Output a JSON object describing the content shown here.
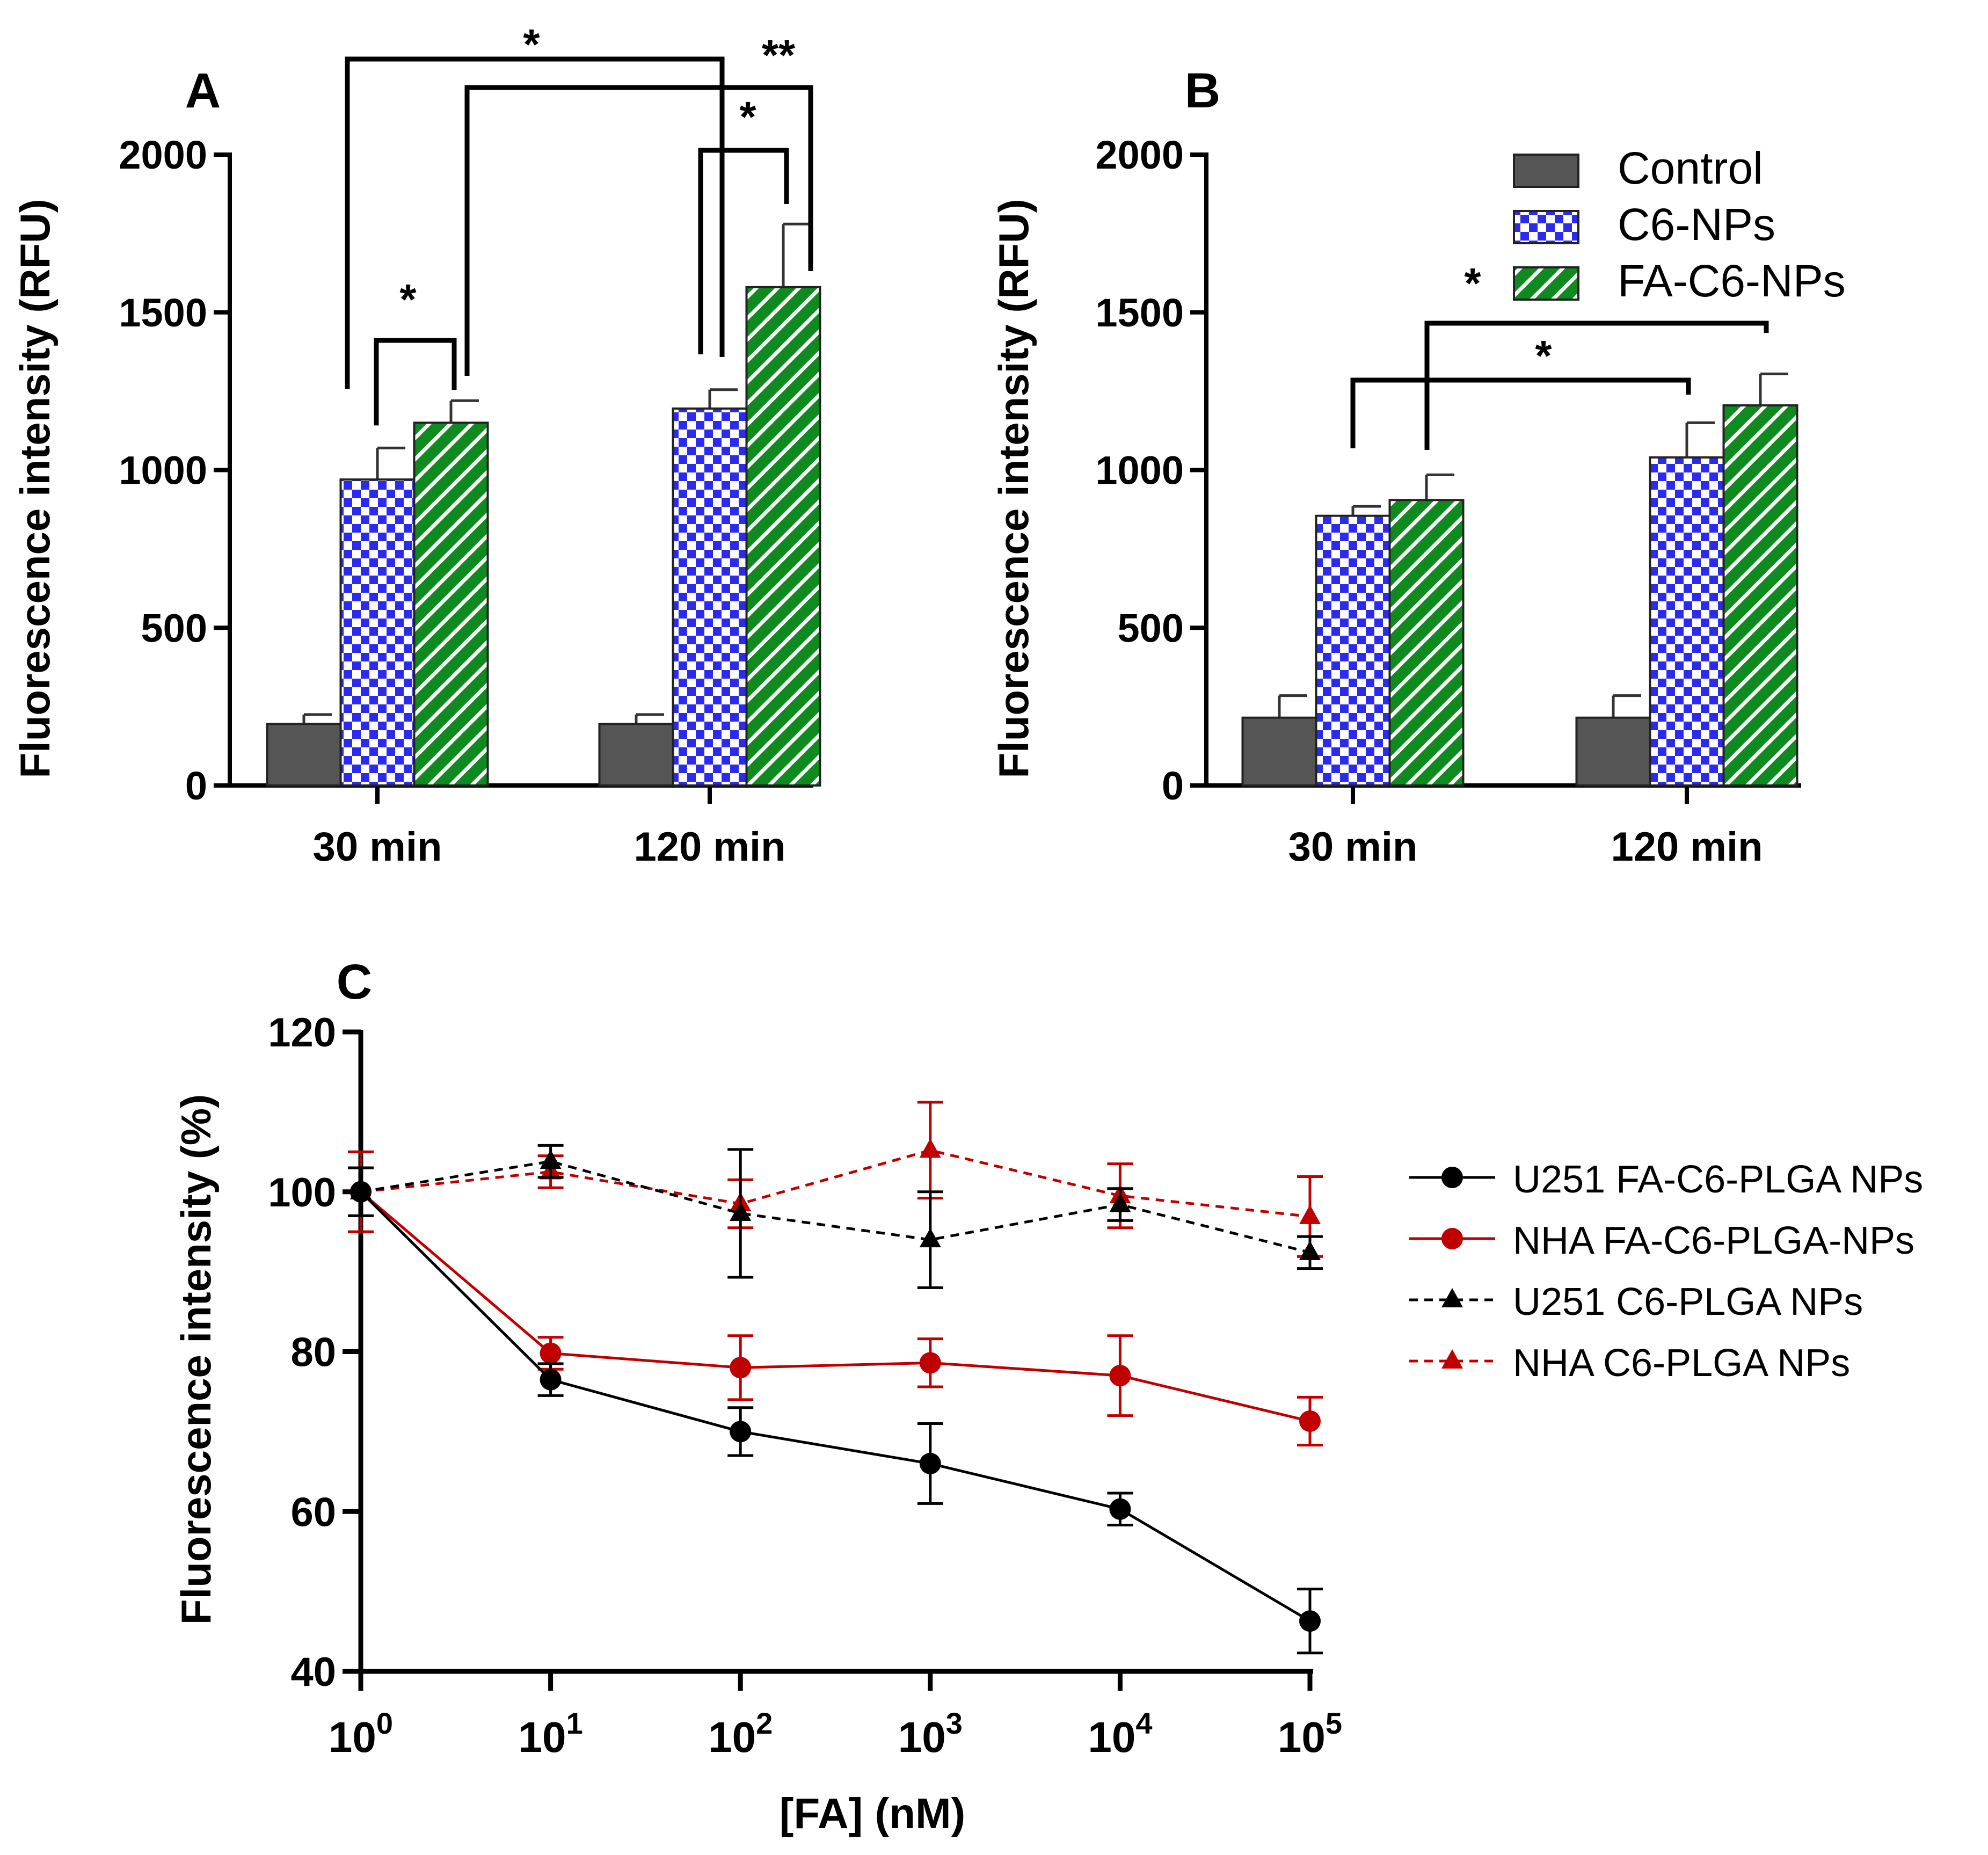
{
  "chart_data": [
    {
      "panel": "A",
      "type": "bar",
      "ylabel": "Fluorescence intensity (RFU)",
      "ylim": [
        0,
        2000
      ],
      "yticks": [
        0,
        500,
        1000,
        1500,
        2000
      ],
      "categories": [
        "30 min",
        "120 min"
      ],
      "series": [
        {
          "name": "Control",
          "values": [
            195,
            195
          ],
          "errors": [
            30,
            30
          ],
          "color": "#555555",
          "pattern": "solid"
        },
        {
          "name": "C6-NPs",
          "values": [
            970,
            1195
          ],
          "errors": [
            100,
            60
          ],
          "color": "#2b2bf0",
          "pattern": "checker"
        },
        {
          "name": "FA-C6-NPs",
          "values": [
            1150,
            1580
          ],
          "errors": [
            70,
            200
          ],
          "color": "#0e8a1e",
          "pattern": "hatch"
        }
      ],
      "significance": [
        {
          "from": [
            0,
            1
          ],
          "to": [
            0,
            2
          ],
          "label": "*"
        },
        {
          "from": [
            0,
            1
          ],
          "to": [
            1,
            1
          ],
          "label": "*"
        },
        {
          "from": [
            0,
            2
          ],
          "to": [
            1,
            2
          ],
          "label": "**"
        },
        {
          "from": [
            1,
            1
          ],
          "to": [
            1,
            2
          ],
          "label": "*"
        }
      ]
    },
    {
      "panel": "B",
      "type": "bar",
      "ylabel": "Fluorescence intensity (RFU)",
      "ylim": [
        0,
        2000
      ],
      "yticks": [
        0,
        500,
        1000,
        1500,
        2000
      ],
      "categories": [
        "30 min",
        "120 min"
      ],
      "series": [
        {
          "name": "Control",
          "values": [
            215,
            215
          ],
          "errors": [
            70,
            70
          ],
          "color": "#555555",
          "pattern": "solid"
        },
        {
          "name": "C6-NPs",
          "values": [
            855,
            1040
          ],
          "errors": [
            30,
            110
          ],
          "color": "#2b2bf0",
          "pattern": "checker"
        },
        {
          "name": "FA-C6-NPs",
          "values": [
            905,
            1205
          ],
          "errors": [
            80,
            100
          ],
          "color": "#0e8a1e",
          "pattern": "hatch"
        }
      ],
      "significance": [
        {
          "from": [
            0,
            1
          ],
          "to": [
            1,
            1
          ],
          "label": "*"
        },
        {
          "from": [
            0,
            2
          ],
          "to": [
            1,
            2
          ],
          "label": "*"
        }
      ],
      "legend": {
        "position": "top-right",
        "entries": [
          "Control",
          "C6-NPs",
          "FA-C6-NPs"
        ]
      }
    },
    {
      "panel": "C",
      "type": "line",
      "xlabel": "[FA] (nM)",
      "ylabel": "Fluorescence intensity (%)",
      "xscale": "log",
      "x": [
        1,
        10,
        100,
        1000,
        10000,
        100000
      ],
      "xtick_labels": [
        {
          "base": "10",
          "exp": "0"
        },
        {
          "base": "10",
          "exp": "1"
        },
        {
          "base": "10",
          "exp": "2"
        },
        {
          "base": "10",
          "exp": "3"
        },
        {
          "base": "10",
          "exp": "4"
        },
        {
          "base": "10",
          "exp": "5"
        }
      ],
      "ylim": [
        40,
        120
      ],
      "yticks": [
        40,
        60,
        80,
        100,
        120
      ],
      "series": [
        {
          "name": "U251 FA-C6-PLGA NPs",
          "values": [
            100,
            76.5,
            70,
            66,
            60.3,
            46.3
          ],
          "errors": [
            3,
            2,
            3,
            5,
            2,
            4
          ],
          "color": "#000000",
          "dash": "solid",
          "marker": "circle"
        },
        {
          "name": "NHA FA-C6-PLGA-NPs",
          "values": [
            100,
            79.8,
            78,
            78.6,
            77,
            71.3
          ],
          "errors": [
            5,
            2,
            4,
            3,
            5,
            3
          ],
          "color": "#c00000",
          "dash": "solid",
          "marker": "circle"
        },
        {
          "name": "U251 C6-PLGA NPs",
          "values": [
            100,
            103.8,
            97.3,
            94,
            98.4,
            92.4
          ],
          "errors": [
            3,
            2,
            8,
            6,
            2,
            2
          ],
          "color": "#000000",
          "dash": "dashed",
          "marker": "triangle"
        },
        {
          "name": "NHA C6-PLGA NPs",
          "values": [
            100,
            102.5,
            98.5,
            105.2,
            99.5,
            96.9
          ],
          "errors": [
            5,
            2,
            3,
            6,
            4,
            5
          ],
          "color": "#c00000",
          "dash": "dashed",
          "marker": "triangle"
        }
      ],
      "legend": {
        "position": "right",
        "entries": [
          "U251 FA-C6-PLGA NPs",
          "NHA FA-C6-PLGA-NPs",
          "U251 C6-PLGA NPs",
          "NHA C6-PLGA NPs"
        ]
      }
    }
  ]
}
